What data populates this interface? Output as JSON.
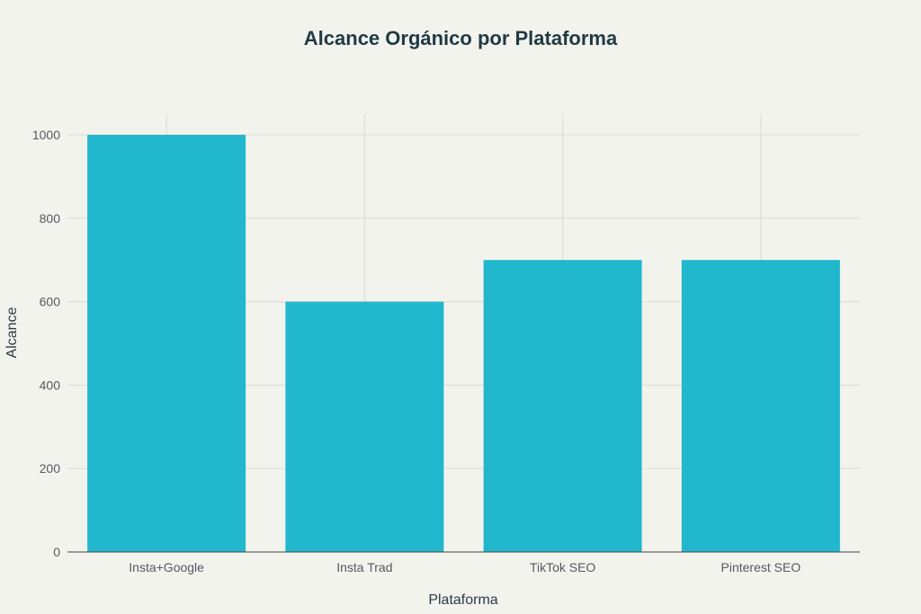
{
  "chart_data": {
    "type": "bar",
    "title": "Alcance Orgánico por Plataforma",
    "xlabel": "Plataforma",
    "ylabel": "Alcance",
    "categories": [
      "Insta+Google",
      "Insta Trad",
      "TikTok SEO",
      "Pinterest SEO"
    ],
    "values": [
      1000,
      600,
      700,
      700
    ],
    "ylim": [
      0,
      1050
    ],
    "yticks": [
      0,
      200,
      400,
      600,
      800,
      1000
    ],
    "grid": true,
    "bar_color": "#21b8cd"
  }
}
